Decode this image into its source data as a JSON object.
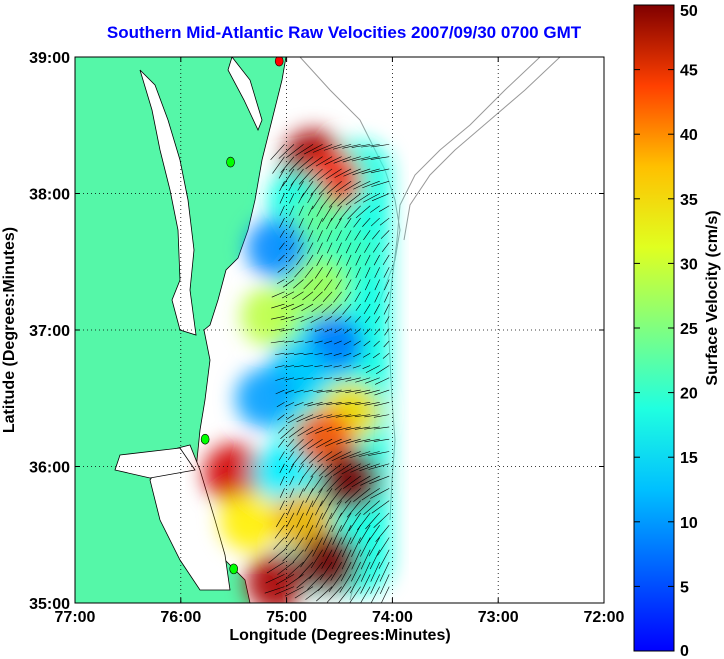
{
  "chart_data": {
    "type": "heatmap",
    "title": "Southern Mid-Atlantic Raw Velocities 2007/09/30 0700 GMT",
    "xlabel": "Longitude (Degrees:Minutes)",
    "ylabel": "Latitude (Degrees:Minutes)",
    "xlim": [
      -77,
      -72
    ],
    "ylim": [
      35,
      39
    ],
    "x_ticks": [
      {
        "value": -77,
        "label": "77:00"
      },
      {
        "value": -76,
        "label": "76:00"
      },
      {
        "value": -75,
        "label": "75:00"
      },
      {
        "value": -74,
        "label": "74:00"
      },
      {
        "value": -73,
        "label": "73:00"
      },
      {
        "value": -72,
        "label": "72:00"
      }
    ],
    "y_ticks": [
      {
        "value": 35,
        "label": "35:00"
      },
      {
        "value": 36,
        "label": "36:00"
      },
      {
        "value": 37,
        "label": "37:00"
      },
      {
        "value": 38,
        "label": "38:00"
      },
      {
        "value": 39,
        "label": "39:00"
      }
    ],
    "grid": true,
    "colorbar": {
      "label": "Surface Velocity (cm/s)",
      "range": [
        0,
        50
      ],
      "ticks": [
        0,
        5,
        10,
        15,
        20,
        25,
        30,
        35,
        40,
        45,
        50
      ],
      "colormap": "jet"
    },
    "land_color": "#55f7a8",
    "water_color": "#ffffff",
    "arrow_color": "#000000",
    "coverage_region": {
      "lon": [
        -75.07,
        -74.02
      ],
      "lat": [
        35.07,
        38.38
      ]
    },
    "velocity_zones": [
      {
        "lon": -74.75,
        "lat": 38.25,
        "speed": 48
      },
      {
        "lon": -74.58,
        "lat": 38.1,
        "speed": 42
      },
      {
        "lon": -74.9,
        "lat": 37.95,
        "speed": 20
      },
      {
        "lon": -74.7,
        "lat": 37.75,
        "speed": 24
      },
      {
        "lon": -75.1,
        "lat": 37.6,
        "speed": 13
      },
      {
        "lon": -74.45,
        "lat": 37.55,
        "speed": 22
      },
      {
        "lon": -74.7,
        "lat": 37.3,
        "speed": 27
      },
      {
        "lon": -75.15,
        "lat": 37.1,
        "speed": 28
      },
      {
        "lon": -74.55,
        "lat": 36.9,
        "speed": 12
      },
      {
        "lon": -74.9,
        "lat": 36.7,
        "speed": 16
      },
      {
        "lon": -75.2,
        "lat": 36.5,
        "speed": 14
      },
      {
        "lon": -74.4,
        "lat": 36.4,
        "speed": 33
      },
      {
        "lon": -74.65,
        "lat": 36.2,
        "speed": 40
      },
      {
        "lon": -75.5,
        "lat": 35.95,
        "speed": 46
      },
      {
        "lon": -75.05,
        "lat": 35.95,
        "speed": 18
      },
      {
        "lon": -74.4,
        "lat": 35.9,
        "speed": 50
      },
      {
        "lon": -75.35,
        "lat": 35.6,
        "speed": 32
      },
      {
        "lon": -74.85,
        "lat": 35.6,
        "speed": 35
      },
      {
        "lon": -74.6,
        "lat": 35.3,
        "speed": 50
      },
      {
        "lon": -75.1,
        "lat": 35.15,
        "speed": 48
      }
    ],
    "stations": [
      {
        "lon": -75.07,
        "lat": 38.97,
        "color": "#ff0000"
      },
      {
        "lon": -75.53,
        "lat": 38.23,
        "color": "#00ff00"
      },
      {
        "lon": -75.77,
        "lat": 36.2,
        "color": "#00ff00"
      },
      {
        "lon": -75.5,
        "lat": 35.25,
        "color": "#00ff00"
      }
    ]
  }
}
